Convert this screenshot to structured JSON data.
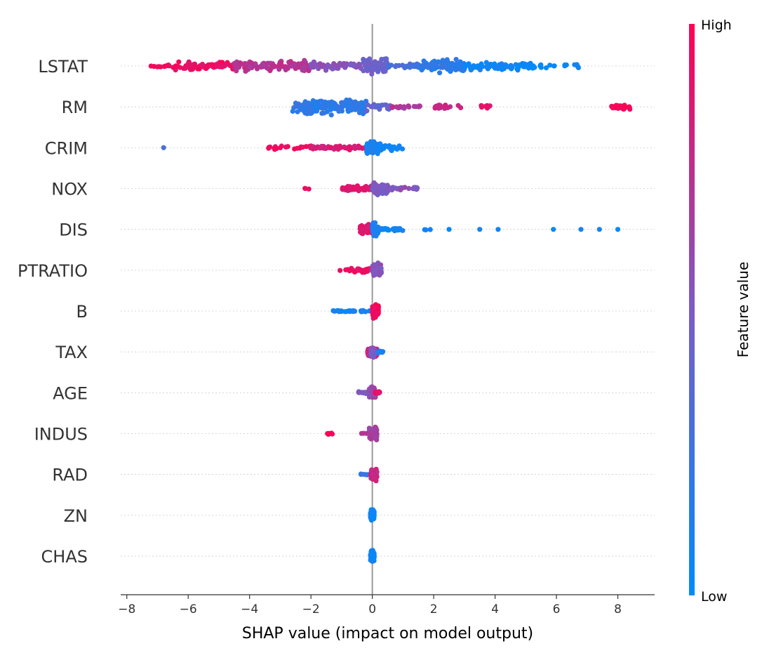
{
  "chart_data": {
    "type": "scatter",
    "subtype": "shap-beeswarm",
    "xlabel": "SHAP value (impact on model output)",
    "xlim": [
      -8.2,
      9.2
    ],
    "xticks": [
      {
        "value": -8,
        "label": "−8"
      },
      {
        "value": -6,
        "label": "−6"
      },
      {
        "value": -4,
        "label": "−4"
      },
      {
        "value": -2,
        "label": "−2"
      },
      {
        "value": 0,
        "label": "0"
      },
      {
        "value": 2,
        "label": "2"
      },
      {
        "value": 4,
        "label": "4"
      },
      {
        "value": 6,
        "label": "6"
      },
      {
        "value": 8,
        "label": "8"
      }
    ],
    "grid": "dotted horizontal row lines",
    "zero_line": true,
    "colorbar": {
      "title": "Feature value",
      "high_label": "High",
      "low_label": "Low",
      "high_color": "#ff0052",
      "low_color": "#008bfb",
      "mid_color": "#7b5cc4"
    },
    "features": [
      {
        "name": "LSTAT",
        "ranges": [
          {
            "x": [
              -7.3,
              -6.5
            ],
            "fv": 0.97,
            "n": 10,
            "h": 0.18
          },
          {
            "x": [
              -6.5,
              -4.5
            ],
            "fv": 0.93,
            "n": 80,
            "h": 0.55
          },
          {
            "x": [
              -4.5,
              -2.0
            ],
            "fv": 0.72,
            "n": 110,
            "h": 0.75
          },
          {
            "x": [
              -2.0,
              -0.3
            ],
            "fv": 0.55,
            "n": 50,
            "h": 0.5
          },
          {
            "x": [
              -0.3,
              0.5
            ],
            "fv": 0.45,
            "n": 80,
            "h": 1.0
          },
          {
            "x": [
              0.5,
              1.5
            ],
            "fv": 0.3,
            "n": 20,
            "h": 0.3
          },
          {
            "x": [
              1.5,
              3.0
            ],
            "fv": 0.18,
            "n": 90,
            "h": 0.8
          },
          {
            "x": [
              3.0,
              5.2
            ],
            "fv": 0.06,
            "n": 80,
            "h": 0.55
          },
          {
            "x": [
              5.2,
              6.8
            ],
            "fv": 0.03,
            "n": 20,
            "h": 0.45
          }
        ]
      },
      {
        "name": "RM",
        "ranges": [
          {
            "x": [
              -2.6,
              -0.2
            ],
            "fv": 0.18,
            "n": 160,
            "h": 0.95
          },
          {
            "x": [
              -0.2,
              0.6
            ],
            "fv": 0.4,
            "n": 30,
            "h": 0.5
          },
          {
            "x": [
              0.6,
              1.6
            ],
            "fv": 0.7,
            "n": 18,
            "h": 0.18
          },
          {
            "x": [
              2.0,
              2.9
            ],
            "fv": 0.78,
            "n": 20,
            "h": 0.3
          },
          {
            "x": [
              3.5,
              4.0
            ],
            "fv": 0.88,
            "n": 10,
            "h": 0.2
          },
          {
            "x": [
              7.8,
              8.4
            ],
            "fv": 0.97,
            "n": 25,
            "h": 0.3
          }
        ]
      },
      {
        "name": "CRIM",
        "ranges": [
          {
            "x": [
              -6.8,
              -6.8
            ],
            "fv": 0.35,
            "n": 1,
            "h": 0.0
          },
          {
            "x": [
              -3.4,
              -2.0
            ],
            "fv": 0.93,
            "n": 20,
            "h": 0.25
          },
          {
            "x": [
              -2.0,
              -0.2
            ],
            "fv": 0.85,
            "n": 55,
            "h": 0.25
          },
          {
            "x": [
              -0.2,
              0.3
            ],
            "fv": 0.1,
            "n": 60,
            "h": 0.85
          },
          {
            "x": [
              0.3,
              1.0
            ],
            "fv": 0.06,
            "n": 25,
            "h": 0.35
          }
        ]
      },
      {
        "name": "NOX",
        "ranges": [
          {
            "x": [
              -2.2,
              -2.0
            ],
            "fv": 0.95,
            "n": 3,
            "h": 0.15
          },
          {
            "x": [
              -1.0,
              0.0
            ],
            "fv": 0.88,
            "n": 60,
            "h": 0.35
          },
          {
            "x": [
              0.0,
              0.5
            ],
            "fv": 0.5,
            "n": 60,
            "h": 0.8
          },
          {
            "x": [
              0.5,
              1.5
            ],
            "fv": 0.55,
            "n": 25,
            "h": 0.25
          }
        ]
      },
      {
        "name": "DIS",
        "ranges": [
          {
            "x": [
              -0.4,
              0.1
            ],
            "fv": 0.88,
            "n": 60,
            "h": 0.65
          },
          {
            "x": [
              0.0,
              0.2
            ],
            "fv": 0.1,
            "n": 40,
            "h": 0.85
          },
          {
            "x": [
              0.2,
              1.0
            ],
            "fv": 0.06,
            "n": 30,
            "h": 0.2
          },
          {
            "x": [
              1.6,
              1.9
            ],
            "fv": 0.05,
            "n": 3,
            "h": 0.1
          },
          {
            "x": [
              2.5,
              2.5
            ],
            "fv": 0.05,
            "n": 1,
            "h": 0.0
          },
          {
            "x": [
              3.5,
              3.5
            ],
            "fv": 0.05,
            "n": 1,
            "h": 0.0
          },
          {
            "x": [
              4.1,
              4.1
            ],
            "fv": 0.05,
            "n": 1,
            "h": 0.0
          },
          {
            "x": [
              5.9,
              5.9
            ],
            "fv": 0.05,
            "n": 1,
            "h": 0.0
          },
          {
            "x": [
              6.8,
              6.8
            ],
            "fv": 0.05,
            "n": 1,
            "h": 0.0
          },
          {
            "x": [
              7.4,
              7.4
            ],
            "fv": 0.05,
            "n": 1,
            "h": 0.0
          },
          {
            "x": [
              8.0,
              8.0
            ],
            "fv": 0.05,
            "n": 1,
            "h": 0.0
          }
        ]
      },
      {
        "name": "PTRATIO",
        "ranges": [
          {
            "x": [
              -1.1,
              -0.8
            ],
            "fv": 0.95,
            "n": 3,
            "h": 0.1
          },
          {
            "x": [
              -0.8,
              0.0
            ],
            "fv": 0.92,
            "n": 35,
            "h": 0.3
          },
          {
            "x": [
              0.0,
              0.3
            ],
            "fv": 0.55,
            "n": 90,
            "h": 0.85
          }
        ]
      },
      {
        "name": "B",
        "ranges": [
          {
            "x": [
              -1.3,
              -0.6
            ],
            "fv": 0.06,
            "n": 20,
            "h": 0.12
          },
          {
            "x": [
              -0.6,
              -0.05
            ],
            "fv": 0.12,
            "n": 12,
            "h": 0.15
          },
          {
            "x": [
              0.0,
              0.2
            ],
            "fv": 0.95,
            "n": 110,
            "h": 0.85
          }
        ]
      },
      {
        "name": "TAX",
        "ranges": [
          {
            "x": [
              -0.15,
              0.15
            ],
            "fv": 0.8,
            "n": 80,
            "h": 0.5
          },
          {
            "x": [
              0.1,
              0.35
            ],
            "fv": 0.12,
            "n": 15,
            "h": 0.2
          },
          {
            "x": [
              -0.05,
              0.05
            ],
            "fv": 0.5,
            "n": 30,
            "h": 0.85
          }
        ]
      },
      {
        "name": "AGE",
        "ranges": [
          {
            "x": [
              -0.45,
              -0.1
            ],
            "fv": 0.5,
            "n": 20,
            "h": 0.12
          },
          {
            "x": [
              -0.1,
              0.1
            ],
            "fv": 0.6,
            "n": 90,
            "h": 0.8
          },
          {
            "x": [
              0.1,
              0.25
            ],
            "fv": 0.9,
            "n": 12,
            "h": 0.15
          }
        ]
      },
      {
        "name": "INDUS",
        "ranges": [
          {
            "x": [
              -1.5,
              -1.3
            ],
            "fv": 0.97,
            "n": 5,
            "h": 0.1
          },
          {
            "x": [
              -0.4,
              -0.1
            ],
            "fv": 0.7,
            "n": 3,
            "h": 0.05
          },
          {
            "x": [
              -0.1,
              0.15
            ],
            "fv": 0.65,
            "n": 90,
            "h": 0.8
          }
        ]
      },
      {
        "name": "RAD",
        "ranges": [
          {
            "x": [
              -0.4,
              -0.1
            ],
            "fv": 0.2,
            "n": 6,
            "h": 0.08
          },
          {
            "x": [
              -0.05,
              0.15
            ],
            "fv": 0.8,
            "n": 90,
            "h": 0.8
          }
        ]
      },
      {
        "name": "ZN",
        "ranges": [
          {
            "x": [
              -0.06,
              0.06
            ],
            "fv": 0.08,
            "n": 110,
            "h": 0.75
          }
        ]
      },
      {
        "name": "CHAS",
        "ranges": [
          {
            "x": [
              -0.06,
              0.06
            ],
            "fv": 0.05,
            "n": 110,
            "h": 0.75
          }
        ]
      }
    ]
  }
}
